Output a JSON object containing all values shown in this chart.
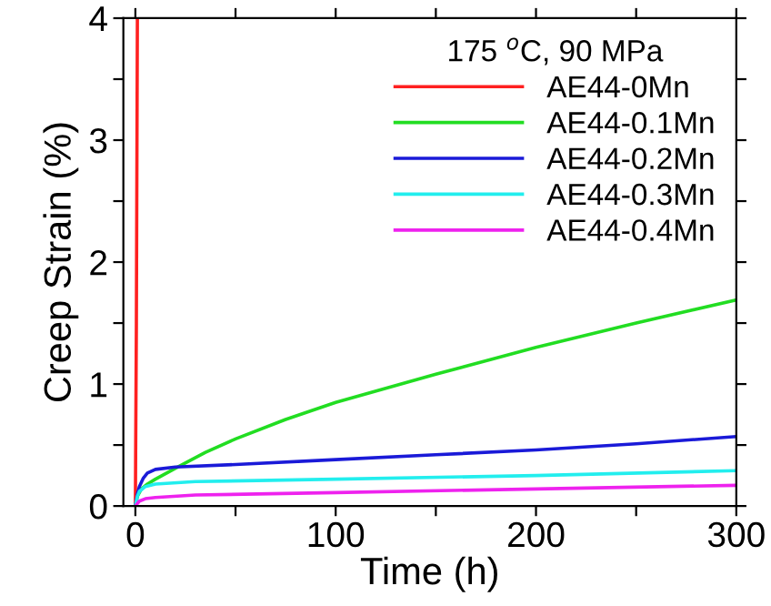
{
  "chart_data": {
    "type": "line",
    "xlabel": "Time (h)",
    "ylabel": "Creep Strain (%)",
    "legend_title": "175 $^{o}$C, 90 MPa",
    "xlim": [
      -6,
      300
    ],
    "ylim": [
      0,
      4
    ],
    "xticks": [
      0,
      {
        "value": 50,
        "label": null
      },
      100,
      {
        "value": 150,
        "label": null
      },
      200,
      {
        "value": 250,
        "label": null
      },
      300
    ],
    "yticks": [
      0,
      {
        "value": 0.5,
        "label": null
      },
      1,
      {
        "value": 1.5,
        "label": null
      },
      2,
      {
        "value": 2.5,
        "label": null
      },
      3,
      {
        "value": 3.5,
        "label": null
      },
      4
    ],
    "grid": false,
    "legend": "top right",
    "marker": "none",
    "line_style": "solid",
    "series": [
      {
        "name": "AE44-0Mn",
        "color": "#ff2020",
        "x": [
          0,
          0.5,
          1
        ],
        "values": [
          0,
          1.5,
          4
        ]
      },
      {
        "name": "AE44-0.1Mn",
        "color": "#22dd22",
        "x": [
          0,
          1,
          3,
          6,
          10,
          20,
          35,
          50,
          75,
          100,
          150,
          200,
          250,
          300
        ],
        "values": [
          0,
          0.08,
          0.14,
          0.18,
          0.22,
          0.31,
          0.44,
          0.55,
          0.71,
          0.85,
          1.08,
          1.3,
          1.5,
          1.69
        ]
      },
      {
        "name": "AE44-0.2Mn",
        "color": "#1a1ad8",
        "x": [
          0,
          1,
          2,
          4,
          6,
          10,
          20,
          50,
          100,
          150,
          200,
          250,
          300
        ],
        "values": [
          0,
          0.1,
          0.16,
          0.23,
          0.27,
          0.3,
          0.32,
          0.34,
          0.38,
          0.42,
          0.46,
          0.51,
          0.57
        ]
      },
      {
        "name": "AE44-0.3Mn",
        "color": "#22eeee",
        "x": [
          0,
          1,
          2,
          5,
          10,
          30,
          100,
          200,
          300
        ],
        "values": [
          0,
          0.08,
          0.12,
          0.16,
          0.18,
          0.2,
          0.22,
          0.25,
          0.29
        ]
      },
      {
        "name": "AE44-0.4Mn",
        "color": "#ee22ee",
        "x": [
          0,
          1,
          2,
          5,
          10,
          30,
          100,
          200,
          300
        ],
        "values": [
          0,
          0.02,
          0.04,
          0.06,
          0.07,
          0.09,
          0.11,
          0.14,
          0.17
        ]
      }
    ]
  }
}
